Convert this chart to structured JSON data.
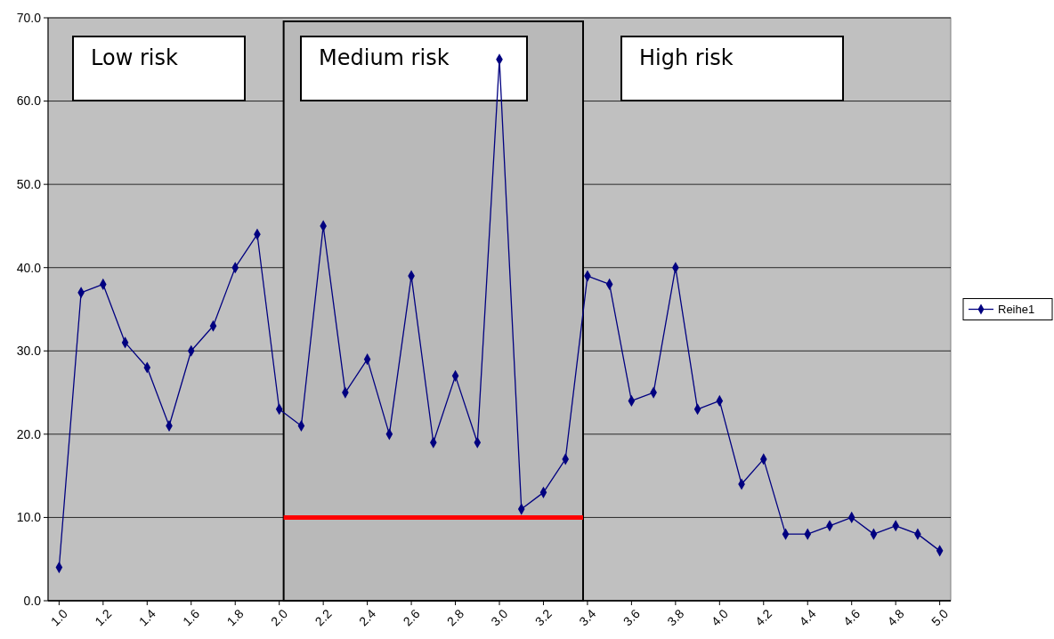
{
  "chart_data": {
    "type": "line",
    "x": [
      1.0,
      1.1,
      1.2,
      1.3,
      1.4,
      1.5,
      1.6,
      1.7,
      1.8,
      1.9,
      2.0,
      2.1,
      2.2,
      2.3,
      2.4,
      2.5,
      2.6,
      2.7,
      2.8,
      2.9,
      3.0,
      3.1,
      3.2,
      3.3,
      3.4,
      3.5,
      3.6,
      3.7,
      3.8,
      3.9,
      4.0,
      4.1,
      4.2,
      4.3,
      4.4,
      4.5,
      4.6,
      4.7,
      4.8,
      4.9,
      5.0
    ],
    "series": [
      {
        "name": "Reihe1",
        "color": "#000080",
        "values": [
          4,
          37,
          38,
          31,
          28,
          21,
          30,
          33,
          40,
          44,
          23,
          21,
          45,
          25,
          29,
          20,
          39,
          19,
          27,
          19,
          65,
          11,
          13,
          17,
          39,
          38,
          24,
          25,
          40,
          23,
          24,
          14,
          17,
          8,
          8,
          9,
          10,
          8,
          9,
          8,
          6
        ]
      },
      {
        "type": "line",
        "color": "#ff0000",
        "marker": "none",
        "x": [
          2.02,
          3.38
        ],
        "values": [
          10,
          10
        ]
      }
    ],
    "xlim": [
      0.95,
      5.05
    ],
    "xticks": [
      {
        "value": 1.0,
        "label": "1.0"
      },
      {
        "value": 1.2,
        "label": "1.2"
      },
      {
        "value": 1.4,
        "label": "1.4"
      },
      {
        "value": 1.6,
        "label": "1.6"
      },
      {
        "value": 1.8,
        "label": "1.8"
      },
      {
        "value": 2.0,
        "label": "2.0"
      },
      {
        "value": 2.2,
        "label": "2.2"
      },
      {
        "value": 2.4,
        "label": "2.4"
      },
      {
        "value": 2.6,
        "label": "2.6"
      },
      {
        "value": 2.8,
        "label": "2.8"
      },
      {
        "value": 3.0,
        "label": "3.0"
      },
      {
        "value": 3.2,
        "label": "3.2"
      },
      {
        "value": 3.4,
        "label": "3.4"
      },
      {
        "value": 3.6,
        "label": "3.6"
      },
      {
        "value": 3.8,
        "label": "3.8"
      },
      {
        "value": 4.0,
        "label": "4.0"
      },
      {
        "value": 4.2,
        "label": "4.2"
      },
      {
        "value": 4.4,
        "label": "4.4"
      },
      {
        "value": 4.6,
        "label": "4.6"
      },
      {
        "value": 4.8,
        "label": "4.8"
      },
      {
        "value": 5.0,
        "label": "5.0"
      }
    ],
    "ylim": [
      0,
      70
    ],
    "yticks": [
      {
        "value": 0,
        "label": "0.0"
      },
      {
        "value": 10,
        "label": "10.0"
      },
      {
        "value": 20,
        "label": "20.0"
      },
      {
        "value": 30,
        "label": "30.0"
      },
      {
        "value": 40,
        "label": "40.0"
      },
      {
        "value": 50,
        "label": "50.0"
      },
      {
        "value": 60,
        "label": "60.0"
      },
      {
        "value": 70,
        "label": "70.0"
      }
    ],
    "grid": "y",
    "legend": "right",
    "bands": [
      {
        "axis": "x",
        "from": 2.02,
        "to": 3.38
      }
    ],
    "marker": "diamond",
    "annotations": [
      "Low risk",
      "Medium risk",
      "High risk"
    ]
  }
}
